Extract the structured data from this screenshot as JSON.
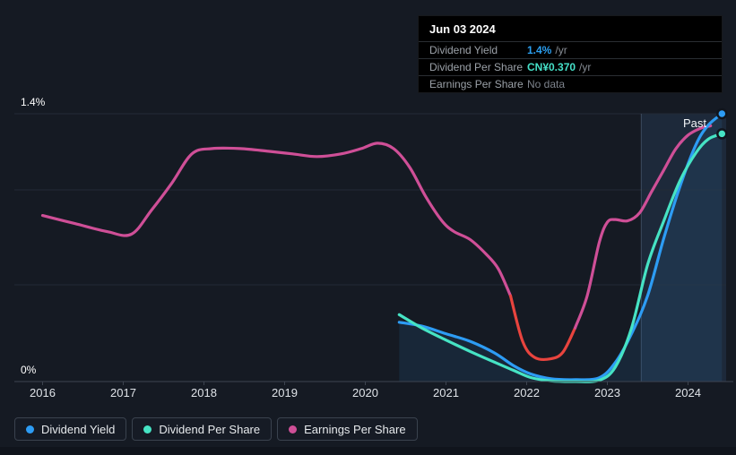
{
  "tooltip": {
    "date": "Jun 03 2024",
    "rows": [
      {
        "label": "Dividend Yield",
        "value": "1.4%",
        "unit": "/yr"
      },
      {
        "label": "Dividend Per Share",
        "value": "CN¥0.370",
        "unit": "/yr"
      },
      {
        "label": "Earnings Per Share",
        "value": "No data",
        "unit": ""
      }
    ]
  },
  "axis": {
    "y_top_label": "1.4%",
    "y_bottom_label": "0%",
    "x_labels": [
      "2016",
      "2017",
      "2018",
      "2019",
      "2020",
      "2021",
      "2022",
      "2023",
      "2024"
    ]
  },
  "past_label": "Past",
  "legend": [
    {
      "label": "Dividend Yield",
      "color": "#2d9cf4"
    },
    {
      "label": "Dividend Per Share",
      "color": "#46e3c4"
    },
    {
      "label": "Earnings Per Share",
      "color": "#cf4f97"
    }
  ],
  "chart_data": {
    "type": "line",
    "x_range": [
      2015.65,
      2024.47
    ],
    "x_ticks": [
      2016,
      2017,
      2018,
      2019,
      2020,
      2021,
      2022,
      2023,
      2024
    ],
    "y_axis": {
      "top_label": "1.4%",
      "bottom_label": "0%",
      "ylim_percent": [
        0,
        1.4
      ]
    },
    "grid": "on",
    "legend_position": "bottom-left",
    "regions": [
      {
        "label": "Past",
        "from_x": 2023.42,
        "to_x": 2024.47,
        "tint": "rgba(74,125,180,0.16)"
      }
    ],
    "series": [
      {
        "name": "Dividend Yield",
        "color": "#2d9cf4",
        "units": "%",
        "domain": [
          0,
          1.4
        ],
        "area_fill": "rgba(45,110,170,0.16)",
        "end_dot": true,
        "points": [
          [
            2020.42,
            0.31
          ],
          [
            2020.7,
            0.29
          ],
          [
            2021.0,
            0.25
          ],
          [
            2021.3,
            0.21
          ],
          [
            2021.6,
            0.15
          ],
          [
            2021.85,
            0.08
          ],
          [
            2022.05,
            0.04
          ],
          [
            2022.3,
            0.015
          ],
          [
            2022.6,
            0.01
          ],
          [
            2022.9,
            0.02
          ],
          [
            2023.1,
            0.1
          ],
          [
            2023.3,
            0.25
          ],
          [
            2023.5,
            0.45
          ],
          [
            2023.7,
            0.75
          ],
          [
            2023.9,
            1.02
          ],
          [
            2024.1,
            1.24
          ],
          [
            2024.25,
            1.34
          ],
          [
            2024.42,
            1.4
          ]
        ]
      },
      {
        "name": "Dividend Per Share",
        "color": "#46e3c4",
        "units": "CN¥",
        "domain": [
          0,
          0.4
        ],
        "end_dot": true,
        "points": [
          [
            2020.42,
            0.1
          ],
          [
            2020.7,
            0.08
          ],
          [
            2021.0,
            0.062
          ],
          [
            2021.3,
            0.045
          ],
          [
            2021.6,
            0.029
          ],
          [
            2021.85,
            0.016
          ],
          [
            2022.05,
            0.006
          ],
          [
            2022.3,
            0.001
          ],
          [
            2022.6,
            0.0
          ],
          [
            2022.9,
            0.002
          ],
          [
            2023.1,
            0.022
          ],
          [
            2023.3,
            0.08
          ],
          [
            2023.5,
            0.175
          ],
          [
            2023.7,
            0.24
          ],
          [
            2023.9,
            0.3
          ],
          [
            2024.1,
            0.342
          ],
          [
            2024.25,
            0.362
          ],
          [
            2024.42,
            0.37
          ]
        ]
      },
      {
        "name": "Earnings Per Share",
        "color": "#cf4f97",
        "negative_color": "#e8443e",
        "units": "CN¥",
        "domain": [
          -0.32,
          0.68
        ],
        "note": "EPS axis is unlabeled on screen; values are relative estimates, red segment = negative EPS (2022 dip), line ends early (No data at Jun 03 2024)",
        "end_dot": false,
        "points": [
          [
            2016.0,
            0.3
          ],
          [
            2016.4,
            0.27
          ],
          [
            2016.8,
            0.24
          ],
          [
            2017.1,
            0.23
          ],
          [
            2017.35,
            0.32
          ],
          [
            2017.6,
            0.42
          ],
          [
            2017.85,
            0.53
          ],
          [
            2018.1,
            0.55
          ],
          [
            2018.45,
            0.55
          ],
          [
            2018.8,
            0.54
          ],
          [
            2019.1,
            0.53
          ],
          [
            2019.4,
            0.52
          ],
          [
            2019.7,
            0.53
          ],
          [
            2019.95,
            0.55
          ],
          [
            2020.15,
            0.57
          ],
          [
            2020.35,
            0.55
          ],
          [
            2020.55,
            0.48
          ],
          [
            2020.75,
            0.37
          ],
          [
            2020.95,
            0.28
          ],
          [
            2021.1,
            0.24
          ],
          [
            2021.3,
            0.21
          ],
          [
            2021.5,
            0.155
          ],
          [
            2021.65,
            0.1
          ],
          [
            2021.8,
            0.0
          ],
          [
            2021.95,
            -0.17
          ],
          [
            2022.1,
            -0.23
          ],
          [
            2022.3,
            -0.235
          ],
          [
            2022.45,
            -0.21
          ],
          [
            2022.6,
            -0.12
          ],
          [
            2022.75,
            0.0
          ],
          [
            2022.9,
            0.2
          ],
          [
            2023.0,
            0.275
          ],
          [
            2023.1,
            0.285
          ],
          [
            2023.25,
            0.28
          ],
          [
            2023.4,
            0.31
          ],
          [
            2023.55,
            0.39
          ],
          [
            2023.7,
            0.47
          ],
          [
            2023.85,
            0.55
          ],
          [
            2024.0,
            0.6
          ],
          [
            2024.15,
            0.625
          ],
          [
            2024.28,
            0.635
          ]
        ]
      }
    ]
  }
}
